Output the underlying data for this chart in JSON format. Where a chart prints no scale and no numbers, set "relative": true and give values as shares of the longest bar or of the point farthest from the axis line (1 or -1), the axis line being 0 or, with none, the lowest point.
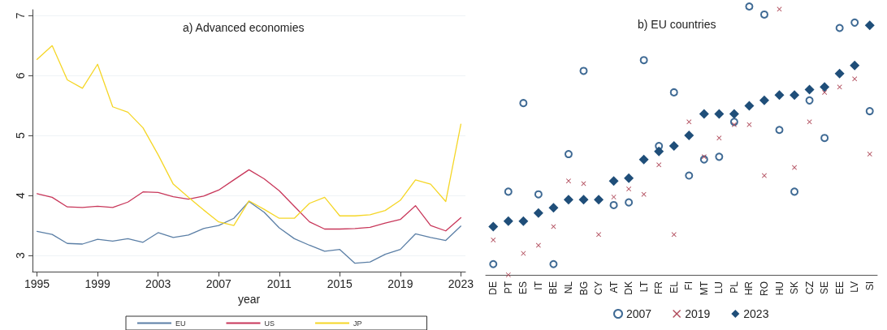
{
  "chart_data": [
    {
      "type": "line",
      "title": "a) Advanced economies",
      "xlabel": "year",
      "x": [
        1995,
        1996,
        1997,
        1998,
        1999,
        2000,
        2001,
        2002,
        2003,
        2004,
        2005,
        2006,
        2007,
        2008,
        2009,
        2010,
        2011,
        2012,
        2013,
        2014,
        2015,
        2016,
        2017,
        2018,
        2019,
        2020,
        2021,
        2022,
        2023
      ],
      "xlim": [
        1994.7,
        2023.3
      ],
      "xticks": [
        1995,
        1999,
        2003,
        2007,
        2011,
        2015,
        2019,
        2023
      ],
      "ylim": [
        2.73,
        7.1
      ],
      "yticks": [
        3,
        4,
        5,
        6,
        7
      ],
      "grid": "y",
      "legend": "bottom",
      "marker": "none",
      "line_style": "solid",
      "series": [
        {
          "name": "EU",
          "color": "#5b7fa6",
          "values": [
            3.4,
            3.35,
            3.2,
            3.19,
            3.27,
            3.24,
            3.28,
            3.22,
            3.38,
            3.3,
            3.34,
            3.45,
            3.5,
            3.62,
            3.9,
            3.72,
            3.46,
            3.28,
            3.17,
            3.07,
            3.1,
            2.87,
            2.89,
            3.02,
            3.1,
            3.36,
            3.3,
            3.25,
            3.49
          ]
        },
        {
          "name": "US",
          "color": "#c8375a",
          "values": [
            4.03,
            3.97,
            3.81,
            3.8,
            3.82,
            3.8,
            3.89,
            4.06,
            4.05,
            3.98,
            3.94,
            3.99,
            4.09,
            4.26,
            4.43,
            4.28,
            4.08,
            3.82,
            3.56,
            3.44,
            3.44,
            3.45,
            3.47,
            3.54,
            3.6,
            3.83,
            3.5,
            3.41,
            3.63
          ]
        },
        {
          "name": "JP",
          "color": "#f5d626",
          "values": [
            6.27,
            6.5,
            5.93,
            5.79,
            6.19,
            5.48,
            5.39,
            5.13,
            4.68,
            4.19,
            3.97,
            3.76,
            3.56,
            3.5,
            3.91,
            3.77,
            3.62,
            3.62,
            3.87,
            3.97,
            3.66,
            3.66,
            3.68,
            3.75,
            3.92,
            4.26,
            4.19,
            3.9,
            5.19
          ]
        }
      ]
    },
    {
      "type": "scatter",
      "title": "b) EU countries",
      "relative": true,
      "legend": "bottom",
      "grid": false,
      "categories": [
        "DE",
        "PT",
        "ES",
        "IT",
        "BE",
        "NL",
        "BG",
        "CY",
        "AT",
        "DK",
        "LT",
        "FR",
        "EL",
        "FI",
        "MT",
        "LU",
        "PL",
        "HR",
        "RO",
        "HU",
        "SK",
        "CZ",
        "SE",
        "EE",
        "LV",
        "SI"
      ],
      "series": [
        {
          "name": "2007",
          "color": "#3f6a94",
          "marker": "circle",
          "values": [
            0.04,
            0.31,
            0.64,
            0.3,
            0.04,
            0.45,
            0.76,
            null,
            0.26,
            0.27,
            0.8,
            0.48,
            0.68,
            0.37,
            0.43,
            0.44,
            0.57,
            1,
            0.97,
            0.54,
            0.31,
            0.65,
            0.51,
            0.92,
            0.94,
            0.61
          ]
        },
        {
          "name": "2019",
          "color": "#b04a5a",
          "marker": "cross",
          "values": [
            0.13,
            0,
            0.08,
            0.11,
            0.18,
            0.35,
            0.34,
            0.15,
            0.29,
            0.32,
            0.3,
            0.41,
            0.15,
            0.57,
            0.44,
            0.51,
            0.56,
            0.56,
            0.37,
            0.99,
            0.4,
            0.57,
            0.68,
            0.7,
            0.73,
            0.45
          ]
        },
        {
          "name": "2023",
          "color": "#1f4e79",
          "marker": "diamond",
          "values": [
            0.18,
            0.2,
            0.2,
            0.23,
            0.25,
            0.28,
            0.28,
            0.28,
            0.35,
            0.36,
            0.43,
            0.46,
            0.48,
            0.52,
            0.6,
            0.6,
            0.6,
            0.63,
            0.65,
            0.67,
            0.67,
            0.69,
            0.7,
            0.75,
            0.78,
            0.93
          ]
        }
      ]
    }
  ]
}
